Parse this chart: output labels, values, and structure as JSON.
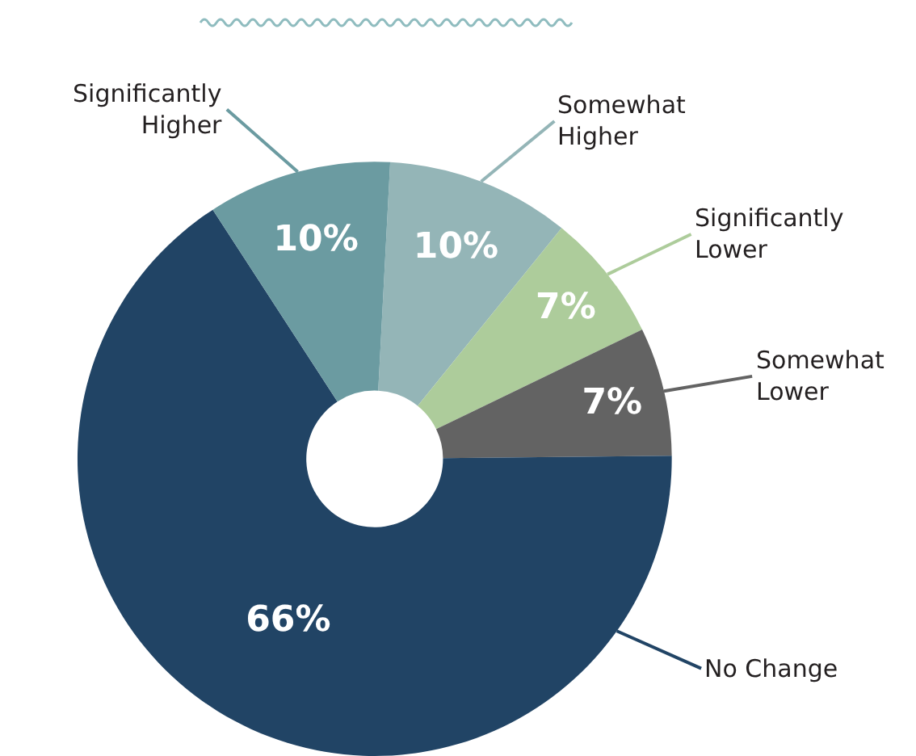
{
  "chart_data": {
    "type": "donut",
    "categories": [
      "Somewhat Higher",
      "Significantly Lower",
      "Somewhat Lower",
      "No Change",
      "Significantly Higher"
    ],
    "values": [
      10,
      7,
      7,
      66,
      10
    ],
    "colors": [
      "#94b5b7",
      "#adcc9b",
      "#636363",
      "#214465",
      "#6b9ba1"
    ],
    "value_labels": [
      "10%",
      "7%",
      "7%",
      "66%",
      "10%"
    ],
    "legend": false
  }
}
